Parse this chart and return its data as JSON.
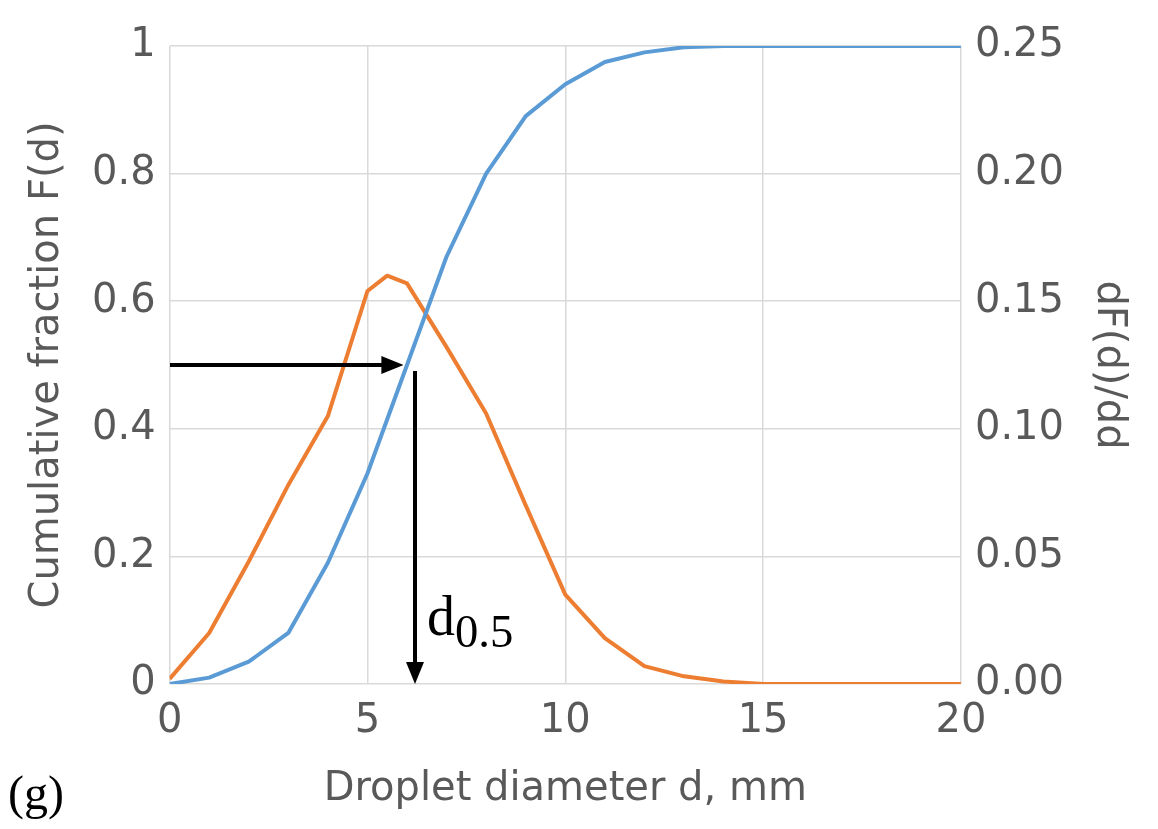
{
  "chart_data": {
    "type": "line",
    "xlabel": "Droplet diameter d, mm",
    "ylabel": "Cumulative fraction F(d)",
    "y2label": "dF(d)/dd",
    "xlim": [
      0,
      20
    ],
    "xticks": [
      0,
      5,
      10,
      15,
      20
    ],
    "ylim": [
      0,
      1
    ],
    "yticks": [
      0,
      0.2,
      0.4,
      0.6,
      0.8,
      1
    ],
    "y2lim": [
      0,
      0.25
    ],
    "y2ticks": [
      {
        "value": 0,
        "label": "0.00"
      },
      {
        "value": 0.05,
        "label": "0.05"
      },
      {
        "value": 0.1,
        "label": "0.10"
      },
      {
        "value": 0.15,
        "label": "0.15"
      },
      {
        "value": 0.2,
        "label": "0.20"
      },
      {
        "value": 0.25,
        "label": "0.25"
      }
    ],
    "grid": true,
    "marker": "none",
    "line_style": "solid",
    "series": [
      {
        "color": "#5b9bd5",
        "x": [
          0,
          1,
          2,
          3,
          4,
          5,
          6,
          7,
          8,
          9,
          10,
          11,
          12,
          13,
          14,
          15,
          16,
          17,
          18,
          19,
          20
        ],
        "values": [
          0,
          0.01,
          0.035,
          0.08,
          0.19,
          0.33,
          0.5,
          0.67,
          0.8,
          0.89,
          0.94,
          0.975,
          0.99,
          0.998,
          1,
          1,
          1,
          1,
          1,
          1,
          1
        ]
      },
      {
        "color": "#ed7d31",
        "axis": "y2",
        "x": [
          0,
          1,
          2,
          3,
          4,
          5,
          5.5,
          6,
          7,
          8,
          9,
          10,
          11,
          12,
          13,
          14,
          15,
          16,
          17,
          18,
          19,
          20
        ],
        "values": [
          0.002,
          0.02,
          0.048,
          0.078,
          0.105,
          0.154,
          0.16,
          0.157,
          0.132,
          0.106,
          0.07,
          0.035,
          0.018,
          0.007,
          0.003,
          0.001,
          0,
          0,
          0,
          0,
          0,
          0
        ]
      }
    ],
    "annotations": [
      {
        "text": "d$_{0.5}$",
        "x": 6.1,
        "y": 0.5
      },
      "(g)"
    ]
  }
}
